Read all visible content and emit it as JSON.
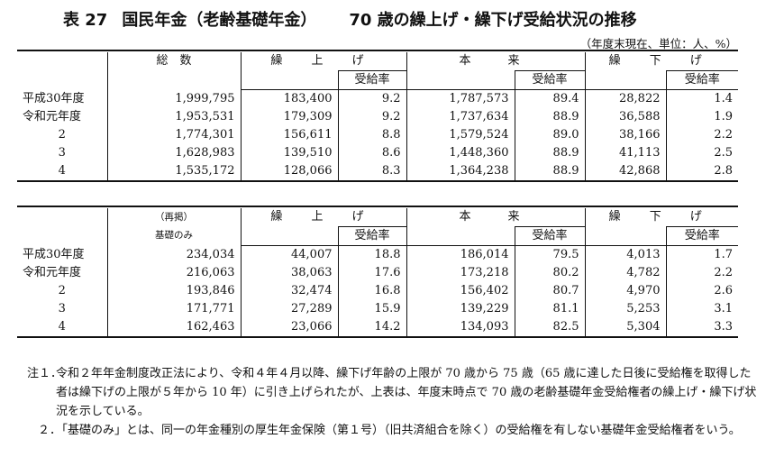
{
  "title": {
    "label": "表 27",
    "main": "国民年金（老齢基礎年金）",
    "sub": "70 歳の繰上げ・繰下げ受給状況の推移"
  },
  "unit_note": "（年度末現在、単位：人、%）",
  "table1": {
    "headers": {
      "total": "総　数",
      "kuriage": "繰 上 げ",
      "honrai": "本　来",
      "kurisage": "繰 下 げ",
      "rate": "受給率"
    },
    "rows": [
      {
        "year": "平成30年度",
        "total": "1,999,795",
        "kuriage": "183,400",
        "kuriage_rate": "9.2",
        "honrai": "1,787,573",
        "honrai_rate": "89.4",
        "kurisage": "28,822",
        "kurisage_rate": "1.4"
      },
      {
        "year": "令和元年度",
        "total": "1,953,531",
        "kuriage": "179,309",
        "kuriage_rate": "9.2",
        "honrai": "1,737,634",
        "honrai_rate": "88.9",
        "kurisage": "36,588",
        "kurisage_rate": "1.9"
      },
      {
        "year": "2",
        "total": "1,774,301",
        "kuriage": "156,611",
        "kuriage_rate": "8.8",
        "honrai": "1,579,524",
        "honrai_rate": "89.0",
        "kurisage": "38,166",
        "kurisage_rate": "2.2"
      },
      {
        "year": "3",
        "total": "1,628,983",
        "kuriage": "139,510",
        "kuriage_rate": "8.6",
        "honrai": "1,448,360",
        "honrai_rate": "88.9",
        "kurisage": "41,113",
        "kurisage_rate": "2.5"
      },
      {
        "year": "4",
        "total": "1,535,172",
        "kuriage": "128,066",
        "kuriage_rate": "8.3",
        "honrai": "1,364,238",
        "honrai_rate": "88.9",
        "kurisage": "42,868",
        "kurisage_rate": "2.8"
      }
    ]
  },
  "table2": {
    "headers": {
      "total_line1": "（再掲）",
      "total_line2": "基礎のみ",
      "kuriage": "繰 上 げ",
      "honrai": "本　来",
      "kurisage": "繰 下 げ",
      "rate": "受給率"
    },
    "rows": [
      {
        "year": "平成30年度",
        "total": "234,034",
        "kuriage": "44,007",
        "kuriage_rate": "18.8",
        "honrai": "186,014",
        "honrai_rate": "79.5",
        "kurisage": "4,013",
        "kurisage_rate": "1.7"
      },
      {
        "year": "令和元年度",
        "total": "216,063",
        "kuriage": "38,063",
        "kuriage_rate": "17.6",
        "honrai": "173,218",
        "honrai_rate": "80.2",
        "kurisage": "4,782",
        "kurisage_rate": "2.2"
      },
      {
        "year": "2",
        "total": "193,846",
        "kuriage": "32,474",
        "kuriage_rate": "16.8",
        "honrai": "156,402",
        "honrai_rate": "80.7",
        "kurisage": "4,970",
        "kurisage_rate": "2.6"
      },
      {
        "year": "3",
        "total": "171,771",
        "kuriage": "27,289",
        "kuriage_rate": "15.9",
        "honrai": "139,229",
        "honrai_rate": "81.1",
        "kurisage": "5,253",
        "kurisage_rate": "3.1"
      },
      {
        "year": "4",
        "total": "162,463",
        "kuriage": "23,066",
        "kuriage_rate": "14.2",
        "honrai": "134,093",
        "honrai_rate": "82.5",
        "kurisage": "5,304",
        "kurisage_rate": "3.3"
      }
    ]
  },
  "notes": [
    {
      "no": "注１．",
      "text": "令和２年年金制度改正法により、令和４年４月以降、繰下げ年齢の上限が 70 歳から 75 歳（65 歳に達した日後に受給権を取得した者は繰下げの上限が５年から 10 年）に引き上げられたが、上表は、年度末時点で 70 歳の老齢基礎年金受給権者の繰上げ・繰下げ状況を示している。"
    },
    {
      "no": "２．",
      "text": "「基礎のみ」とは、同一の年金種別の厚生年金保険（第１号）（旧共済組合を除く）の受給権を有しない基礎年金受給権者をいう。"
    }
  ]
}
